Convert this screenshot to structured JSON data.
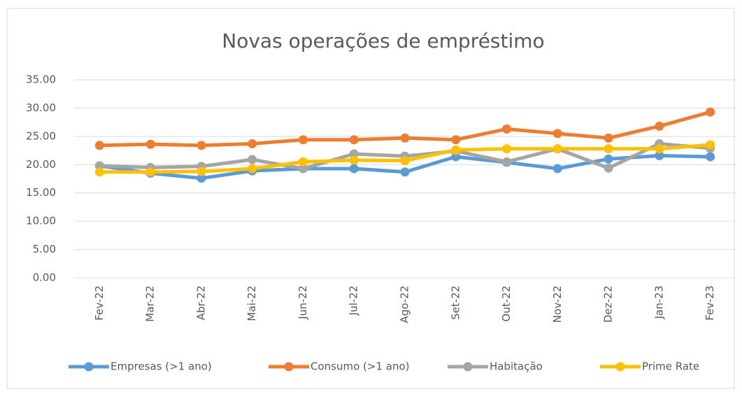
{
  "chart_data": {
    "type": "line",
    "title": "Novas operações de empréstimo",
    "categories": [
      "Fev-22",
      "Mar-22",
      "Abr-22",
      "Mai-22",
      "Jun-22",
      "Jul-22",
      "Ago-22",
      "Set-22",
      "Out-22",
      "Nov-22",
      "Dez-22",
      "Jan-23",
      "Fev-23"
    ],
    "series": [
      {
        "name": "Empresas (>1 ano)",
        "color": "#5b9bd5",
        "values": [
          19.8,
          18.5,
          17.6,
          18.9,
          19.3,
          19.3,
          18.7,
          21.4,
          20.4,
          19.3,
          21.0,
          21.6,
          21.4
        ]
      },
      {
        "name": "Consumo (>1 ano)",
        "color": "#ed7d31",
        "values": [
          23.4,
          23.6,
          23.4,
          23.7,
          24.4,
          24.4,
          24.7,
          24.4,
          26.3,
          25.5,
          24.7,
          26.8,
          29.3
        ]
      },
      {
        "name": "Habitação",
        "color": "#a5a5a5",
        "values": [
          19.8,
          19.5,
          19.7,
          20.9,
          19.3,
          21.9,
          21.5,
          22.4,
          20.5,
          22.8,
          19.4,
          23.7,
          22.9
        ]
      },
      {
        "name": "Prime Rate",
        "color": "#ffc000",
        "values": [
          18.7,
          18.7,
          18.8,
          19.3,
          20.5,
          20.8,
          20.7,
          22.6,
          22.8,
          22.8,
          22.8,
          22.8,
          23.5
        ]
      }
    ],
    "ylim": [
      0,
      35
    ],
    "yticks": [
      {
        "value": 0,
        "label": "0.00"
      },
      {
        "value": 5,
        "label": "5.00"
      },
      {
        "value": 10,
        "label": "10.00"
      },
      {
        "value": 15,
        "label": "15.00"
      },
      {
        "value": 20,
        "label": "20.00"
      },
      {
        "value": 25,
        "label": "25.00"
      },
      {
        "value": 30,
        "label": "30.00"
      },
      {
        "value": 35,
        "label": "35.00"
      }
    ],
    "grid": true,
    "legend": "bottom"
  }
}
